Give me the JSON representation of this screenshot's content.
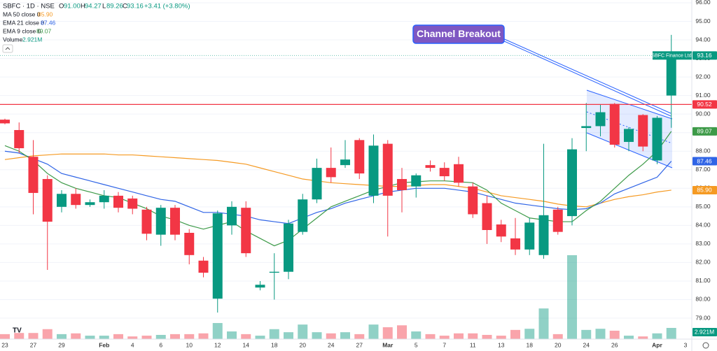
{
  "chart_data": {
    "type": "candlestick",
    "symbol": "SBFC · 1D · NSE",
    "ohlc_labels": [
      "O",
      "H",
      "L",
      "C"
    ],
    "ohlc_values": [
      "91.00",
      "94.27",
      "89.26",
      "93.16"
    ],
    "change": "+3.41 (+3.80%)",
    "categories": [
      "23",
      null,
      "27",
      null,
      "29",
      null,
      null,
      "Feb",
      null,
      "4",
      null,
      "6",
      null,
      "10",
      null,
      "12",
      null,
      "14",
      null,
      "18",
      null,
      "20",
      null,
      "24",
      null,
      "27",
      null,
      "Mar",
      null,
      "5",
      null,
      "7",
      null,
      "11",
      null,
      "13",
      null,
      "18",
      null,
      "20",
      null,
      "24",
      null,
      "26",
      null,
      null,
      "Apr",
      null
    ],
    "future_categories": [
      "3"
    ],
    "open": [
      89.7,
      89.14,
      87.7,
      86.5,
      85.0,
      85.7,
      85.1,
      85.25,
      85.6,
      85.45,
      84.85,
      83.5,
      84.95,
      83.6,
      82.1,
      80.05,
      84.0,
      84.95,
      80.65,
      81.45,
      81.5,
      83.65,
      85.4,
      87.1,
      87.25,
      88.6,
      85.6,
      88.4,
      86.5,
      86.1,
      87.25,
      87.1,
      87.3,
      86.1,
      85.2,
      84.05,
      83.3,
      82.7,
      82.4,
      84.85,
      84.5,
      89.25,
      89.35,
      90.55,
      88.5,
      89.95,
      87.5,
      91.0
    ],
    "high": [
      89.75,
      89.55,
      88.6,
      86.7,
      85.9,
      86.0,
      85.4,
      85.9,
      85.8,
      85.6,
      85.0,
      85.1,
      85.1,
      83.8,
      82.3,
      84.8,
      85.3,
      85.3,
      81.0,
      82.5,
      84.3,
      85.7,
      87.6,
      88.2,
      88.6,
      88.7,
      88.9,
      88.6,
      87.1,
      86.8,
      87.5,
      87.4,
      87.7,
      86.3,
      85.6,
      84.3,
      84.4,
      84.4,
      88.4,
      85.0,
      88.7,
      90.6,
      90.5,
      90.6,
      89.3,
      90.0,
      89.9,
      94.27
    ],
    "low": [
      89.45,
      87.9,
      84.6,
      81.6,
      84.7,
      84.9,
      85.0,
      84.9,
      84.7,
      84.6,
      83.2,
      82.9,
      83.2,
      81.9,
      81.2,
      79.3,
      83.5,
      82.3,
      80.5,
      80.0,
      81.1,
      83.5,
      85.2,
      86.3,
      87.1,
      86.5,
      85.2,
      83.4,
      84.7,
      85.5,
      86.9,
      86.4,
      86.1,
      84.4,
      83.0,
      83.1,
      82.4,
      82.4,
      82.2,
      83.5,
      84.0,
      88.0,
      88.8,
      88.2,
      88.0,
      88.0,
      87.3,
      89.26
    ],
    "close": [
      89.5,
      88.16,
      85.75,
      84.2,
      85.7,
      85.1,
      85.25,
      85.6,
      84.95,
      84.9,
      83.55,
      84.95,
      83.5,
      82.4,
      81.45,
      84.65,
      85.0,
      82.5,
      80.8,
      81.5,
      84.1,
      85.4,
      87.1,
      86.6,
      87.55,
      86.8,
      88.3,
      85.6,
      85.9,
      86.7,
      87.1,
      86.65,
      86.3,
      84.6,
      83.75,
      83.4,
      82.7,
      84.15,
      84.55,
      83.65,
      88.1,
      89.35,
      90.1,
      88.35,
      89.2,
      88.25,
      89.8,
      93.16
    ],
    "up_color": "#089981",
    "down_color": "#f23645",
    "series": [
      {
        "name": "MA 50 close 0",
        "color": "#f59a23",
        "last_label": "85.90",
        "values": [
          87.55,
          87.65,
          87.75,
          87.8,
          87.85,
          87.85,
          87.85,
          87.85,
          87.8,
          87.8,
          87.75,
          87.7,
          87.65,
          87.6,
          87.55,
          87.5,
          87.4,
          87.3,
          87.1,
          86.9,
          86.7,
          86.5,
          86.4,
          86.3,
          86.25,
          86.2,
          86.15,
          86.1,
          86.1,
          86.15,
          86.2,
          86.2,
          86.1,
          86.0,
          85.8,
          85.6,
          85.5,
          85.4,
          85.3,
          85.15,
          85.05,
          85.0,
          85.2,
          85.4,
          85.55,
          85.65,
          85.8,
          85.9
        ]
      },
      {
        "name": "EMA 21 close 0",
        "color": "#2f64e6",
        "last_label": "87.46",
        "values": [
          88.0,
          87.9,
          87.6,
          87.3,
          86.8,
          86.6,
          86.4,
          86.2,
          86.0,
          85.8,
          85.6,
          85.4,
          85.3,
          85.0,
          84.7,
          84.7,
          84.6,
          84.5,
          84.3,
          84.2,
          84.1,
          84.4,
          84.7,
          84.9,
          85.2,
          85.4,
          85.6,
          85.8,
          85.9,
          86.0,
          86.0,
          86.0,
          85.9,
          85.8,
          85.6,
          85.4,
          85.2,
          85.1,
          85.0,
          84.9,
          84.85,
          84.9,
          85.2,
          85.7,
          86.0,
          86.3,
          86.6,
          87.46
        ]
      },
      {
        "name": "EMA 9 close 0",
        "color": "#3d9a48",
        "last_label": "89.07",
        "values": [
          88.3,
          88.0,
          87.5,
          86.8,
          86.3,
          86.0,
          85.8,
          85.6,
          85.5,
          85.2,
          84.9,
          84.5,
          84.3,
          84.0,
          83.8,
          84.0,
          84.2,
          83.7,
          83.3,
          82.9,
          83.2,
          83.8,
          84.4,
          85.0,
          85.3,
          85.6,
          85.9,
          86.1,
          86.3,
          86.35,
          86.4,
          86.4,
          86.35,
          86.3,
          85.9,
          85.2,
          84.8,
          84.4,
          84.3,
          84.2,
          84.2,
          84.8,
          85.3,
          86.0,
          86.7,
          87.3,
          88.0,
          89.07
        ]
      }
    ],
    "volume": {
      "name": "Volume",
      "label": "2.921M",
      "ylim": [
        0,
        88.5
      ],
      "values": [
        1.3,
        1.6,
        1.6,
        2.6,
        1.3,
        1.5,
        0.9,
        0.9,
        1.3,
        0.7,
        0.9,
        1.1,
        1.3,
        1.3,
        1.5,
        4.2,
        2.0,
        1.3,
        0.9,
        2.6,
        1.8,
        3.8,
        1.8,
        1.5,
        1.8,
        1.3,
        3.8,
        3.1,
        3.6,
        2.0,
        1.3,
        0.9,
        1.5,
        1.5,
        1.1,
        0.9,
        2.4,
        2.7,
        8.0,
        1.3,
        21.9,
        2.4,
        2.7,
        2.2,
        0.9,
        0.7,
        1.5,
        2.921
      ]
    },
    "hline": {
      "value": 90.52,
      "label": "90.52",
      "color": "#f23645"
    },
    "last_price": {
      "name": "SBFC Finance Ltd.",
      "label": "93.16"
    },
    "annotation": "Channel Breakout",
    "ylim": [
      77.87,
      96.15
    ],
    "yticks": [
      {
        "value": 79,
        "label": "79.00"
      },
      {
        "value": 80,
        "label": "80.00"
      },
      {
        "value": 81,
        "label": "81.00"
      },
      {
        "value": 82,
        "label": "82.00"
      },
      {
        "value": 83,
        "label": "83.00"
      },
      {
        "value": 84,
        "label": "84.00"
      },
      {
        "value": 85,
        "label": "85.00"
      },
      {
        "value": 86,
        "label": "86.00"
      },
      {
        "value": 87,
        "label": "87.00"
      },
      {
        "value": 88,
        "label": "88.00"
      },
      {
        "value": 89,
        "label": "89.00"
      },
      {
        "value": 90,
        "label": "90.00"
      },
      {
        "value": 91,
        "label": "91.00"
      },
      {
        "value": 92,
        "label": "92.00"
      },
      {
        "value": 93,
        "label": "93.00"
      },
      {
        "value": 94,
        "label": "94.00"
      },
      {
        "value": 95,
        "label": "95.00"
      },
      {
        "value": 96,
        "label": "96.00"
      }
    ],
    "grid": true
  }
}
